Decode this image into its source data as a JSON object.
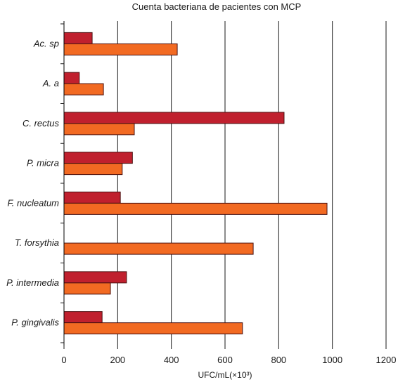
{
  "chart_data": {
    "type": "bar",
    "orientation": "horizontal",
    "title": "Cuenta bacteriana de pacientes con MCP",
    "xlabel": "UFC/mL(×10³)",
    "ylabel": "",
    "xlim": [
      0,
      1200
    ],
    "xticks": [
      0,
      200,
      400,
      600,
      800,
      1000,
      1200
    ],
    "grid": "vertical",
    "categories": [
      "Ac. sp",
      "A. a",
      "C. rectus",
      "P. micra",
      "F. nucleatum",
      "T. forsythia",
      "P. intermedia",
      "P. gingivalis"
    ],
    "series": [
      {
        "color": "#c0202e",
        "values": [
          105,
          57,
          820,
          255,
          210,
          0,
          233,
          142
        ]
      },
      {
        "color": "#f26a22",
        "values": [
          422,
          147,
          262,
          217,
          980,
          705,
          173,
          665
        ]
      }
    ]
  }
}
